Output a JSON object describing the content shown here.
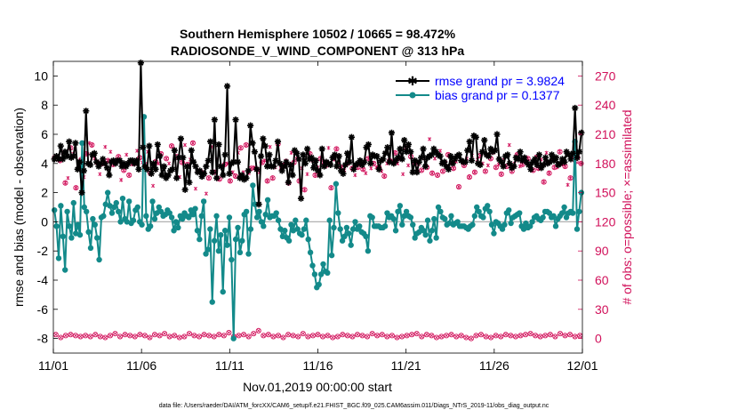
{
  "chart_data": {
    "type": "line",
    "title_line1": "Southern Hemisphere 10502 / 10665 = 98.472%",
    "title_line2": "RADIOSONDE_V_WIND_COMPONENT @ 313 hPa",
    "ylabel_left": "rmse and bias (model - observation)",
    "ylabel_right": "# of obs: o=possible; ×=assimilated",
    "xlabel": "Nov.01,2019 00:00:00 start",
    "footer": "data file: /Users/raeder/DAI/ATM_forcXX/CAM6_setup/f.e21.FHIST_BGC.f09_025.CAM6assim.011/Diags_NTrS_2019-11/obs_diag_output.nc",
    "xlim": [
      0,
      30
    ],
    "ylim_left": [
      -9,
      11
    ],
    "ylim_right": [
      -15,
      285
    ],
    "x_ticks": [
      0,
      5,
      10,
      15,
      20,
      25,
      30
    ],
    "x_tick_labels": [
      "11/01",
      "11/06",
      "11/11",
      "11/16",
      "11/21",
      "11/26",
      "12/01"
    ],
    "y_ticks_left": [
      -8,
      -6,
      -4,
      -2,
      0,
      2,
      4,
      6,
      8,
      10
    ],
    "y_tick_labels_left": [
      "-8",
      "-6",
      "-4",
      "-2",
      "0",
      "2",
      "4",
      "6",
      "8",
      "10"
    ],
    "y_ticks_right": [
      0,
      30,
      60,
      90,
      120,
      150,
      180,
      210,
      240,
      270
    ],
    "y_tick_labels_right": [
      "0",
      "30",
      "60",
      "90",
      "120",
      "150",
      "180",
      "210",
      "240",
      "270"
    ],
    "colors": {
      "rmse": "#000000",
      "bias": "#138a8a",
      "obs": "#d1105a",
      "legend_text": "#0000ff",
      "zero_line": "#b0b0b0",
      "axis": "#000000"
    },
    "series": [
      {
        "name": "rmse grand pr = 3.9824",
        "axis": "left",
        "marker": "star",
        "values": [
          4.3,
          4.5,
          4.3,
          5.2,
          4.3,
          4.8,
          4.5,
          5.5,
          4.4,
          4.5,
          5.4,
          3.6,
          4.1,
          2.0,
          3.5,
          7.6,
          4.0,
          3.9,
          4.6,
          4.7,
          4.1,
          3.8,
          4.0,
          4.3,
          4.0,
          3.7,
          3.2,
          4.1,
          4.2,
          4.0,
          4.2,
          4.2,
          3.8,
          4.0,
          3.8,
          4.0,
          4.2,
          4.2,
          4.0,
          4.2,
          3.6,
          10.9,
          5.1,
          3.8,
          3.6,
          5.2,
          3.3,
          4.0,
          3.6,
          5.3,
          4.5,
          3.2,
          3.8,
          3.0,
          3.2,
          3.5,
          3.6,
          4.9,
          3.0,
          4.4,
          5.7,
          4.4,
          2.2,
          3.8,
          2.7,
          4.9,
          4.1,
          3.8,
          3.4,
          3.5,
          3.1,
          3.3,
          3.8,
          4.2,
          5.5,
          3.4,
          7.0,
          3.0,
          5.3,
          3.8,
          3.2,
          4.6,
          9.3,
          3.3,
          4.0,
          4.1,
          7.0,
          4.1,
          3.0,
          3.2,
          2.9,
          3.0,
          3.5,
          6.6,
          5.4,
          4.8,
          3.6,
          1.2,
          4.5,
          5.7,
          5.2,
          3.8,
          4.6,
          3.8,
          3.8,
          4.2,
          5.5,
          4.0,
          3.5,
          3.8,
          4.1,
          2.7,
          3.9,
          3.2,
          4.9,
          4.7,
          4.3,
          1.6,
          4.6,
          4.0,
          5.0,
          4.3,
          4.4,
          3.7,
          4.2,
          3.5,
          3.2,
          5.0,
          3.8,
          4.1,
          4.0,
          3.9,
          4.4,
          4.6,
          3.8,
          4.5,
          3.5,
          3.3,
          3.9,
          4.7,
          4.1,
          5.8,
          3.6,
          3.9,
          4.0,
          4.2,
          3.9,
          4.1,
          5.1,
          5.3,
          4.0,
          4.6,
          4.5,
          4.5,
          3.6,
          4.2,
          4.3,
          4.7,
          5.1,
          4.1,
          6.1,
          4.0,
          4.2,
          4.4,
          5.0,
          4.3,
          5.6,
          4.8,
          5.3,
          4.8,
          3.4,
          4.2,
          3.4,
          4.1,
          4.4,
          5.0,
          3.8,
          4.4,
          4.5,
          4.6,
          5.0,
          4.8,
          4.6,
          4.5,
          4.0,
          4.1,
          3.8,
          3.6,
          4.5,
          4.0,
          4.3,
          4.5,
          4.6,
          4.2,
          4.1,
          4.1,
          4.9,
          5.5,
          4.2,
          5.9,
          5.8,
          4.0,
          3.9,
          4.8,
          5.6,
          4.6,
          4.5,
          5.0,
          4.8,
          4.9,
          6.0,
          4.3,
          4.1,
          3.8,
          4.5,
          4.6,
          4.0,
          3.7,
          3.8,
          4.4,
          4.3,
          4.8,
          4.2,
          4.4,
          4.1,
          3.9,
          3.6,
          4.1,
          4.3,
          3.9,
          4.6,
          3.7,
          3.9,
          4.4,
          4.0,
          4.1,
          4.6,
          4.2,
          4.4,
          3.9,
          4.0,
          4.3,
          4.1,
          4.8,
          4.6,
          4.3,
          4.7,
          7.8,
          4.4,
          4.8,
          6.1
        ]
      },
      {
        "name": "bias grand pr = 0.1377",
        "axis": "left",
        "marker": "dot",
        "values": [
          0.8,
          -0.3,
          -2.5,
          1.1,
          -1.0,
          -3.3,
          0.7,
          -0.3,
          -1.1,
          1.3,
          -0.8,
          -0.2,
          -0.9,
          5.4,
          1.0,
          0.7,
          -0.7,
          -1.8,
          0.2,
          -0.2,
          -1.1,
          -2.6,
          0.3,
          0.4,
          1.2,
          2.0,
          1.1,
          0.6,
          1.0,
          1.3,
          0.7,
          0.0,
          1.6,
          0.2,
          0.0,
          1.4,
          -0.1,
          0.1,
          0.8,
          1.0,
          0.0,
          -0.2,
          7.2,
          0.4,
          -0.5,
          -0.3,
          1.4,
          0.2,
          0.6,
          1.0,
          0.7,
          0.4,
          0.5,
          0.8,
          0.6,
          0.3,
          -0.6,
          0.0,
          -0.4,
          0.4,
          0.2,
          0.6,
          0.4,
          0.3,
          0.8,
          0.5,
          0.9,
          -0.6,
          -1.2,
          0.4,
          1.4,
          -2.2,
          -1.9,
          -0.5,
          -5.5,
          -1.3,
          0.4,
          -2.0,
          -0.9,
          -4.8,
          -0.6,
          -1.6,
          0.3,
          -2.6,
          -8.0,
          -1.2,
          -0.4,
          -2.1,
          -1.3,
          0.5,
          0.7,
          -2.2,
          -0.5,
          2.5,
          1.2,
          0.3,
          0.7,
          0.0,
          -0.3,
          0.5,
          1.5,
          0.3,
          0.4,
          0.4,
          0.6,
          0.1,
          -0.5,
          -1.0,
          -0.6,
          -1.1,
          -1.3,
          -0.2,
          -0.6,
          0.1,
          -0.5,
          -0.8,
          -0.9,
          -0.5,
          0.1,
          -1.2,
          -2.1,
          -3.0,
          -3.6,
          -4.5,
          -4.3,
          -3.6,
          -2.9,
          -3.4,
          -3.5,
          0.1,
          -2.3,
          -0.4,
          2.6,
          0.6,
          -0.5,
          -1.3,
          -1.0,
          -0.4,
          -0.8,
          -1.6,
          -0.5,
          0.0,
          -0.5,
          -0.3,
          -0.7,
          -0.8,
          -1.0,
          -2.0,
          0.4,
          0.3,
          -0.3,
          -0.3,
          -0.3,
          -0.4,
          -0.4,
          -0.3,
          0.6,
          0.3,
          0.4,
          0.2,
          -0.6,
          0.7,
          1.1,
          -0.2,
          0.4,
          0.7,
          0.4,
          0.3,
          -0.2,
          -1.1,
          -0.8,
          -0.7,
          -0.4,
          -0.6,
          -0.9,
          0.1,
          -1.3,
          -0.6,
          0.2,
          -1.1,
          1.0,
          0.7,
          0.3,
          0.2,
          -0.2,
          -0.1,
          0.4,
          -0.2,
          -0.1,
          0.0,
          -0.3,
          -0.3,
          -0.3,
          -0.4,
          -0.5,
          -0.3,
          -0.2,
          0.4,
          1.0,
          0.7,
          0.4,
          0.3,
          0.9,
          1.1,
          0.7,
          -0.2,
          -0.8,
          0.0,
          -0.1,
          -0.3,
          -0.5,
          -0.2,
          0.6,
          0.8,
          -0.1,
          0.3,
          0.4,
          0.5,
          0.6,
          -0.3,
          -0.5,
          -0.1,
          -0.4,
          -0.3,
          0.0,
          0.3,
          0.4,
          0.2,
          0.1,
          0.3,
          0.7,
          0.7,
          0.6,
          0.3,
          0.4,
          -0.3,
          0.2,
          0.4,
          0.6,
          1.0,
          0.3,
          0.6,
          0.7,
          0.6,
          5.5,
          -0.5,
          0.7,
          2.0
        ]
      }
    ],
    "obs_points": {
      "axis": "right",
      "possible": [
        4,
        1,
        3,
        4,
        3,
        2,
        3,
        2,
        4,
        2,
        1,
        3,
        5,
        2,
        4,
        3,
        2,
        4,
        3,
        1,
        4,
        3,
        5,
        2,
        3,
        1,
        2,
        5,
        3,
        2,
        4,
        3,
        2,
        4,
        3,
        6,
        2,
        3,
        4,
        2,
        5,
        8,
        3,
        4,
        2,
        3,
        1,
        4,
        3,
        2,
        5,
        2,
        3,
        4,
        2,
        3,
        1,
        2,
        4,
        3,
        2,
        4,
        3,
        2,
        5,
        3,
        4,
        2,
        3,
        1,
        2,
        3,
        4,
        5,
        2,
        4,
        3,
        1,
        2,
        3,
        4,
        2,
        3,
        1,
        0,
        3,
        4,
        2,
        1,
        3,
        2,
        4,
        3,
        2,
        3,
        4,
        5,
        3,
        2,
        3,
        4,
        2,
        5,
        3,
        4,
        2,
        3
      ],
      "assimilated": [
        186,
        187,
        183,
        191,
        160,
        165,
        196,
        190,
        155,
        175,
        184,
        166,
        190,
        201,
        199,
        185,
        181,
        169,
        180,
        197,
        183,
        192,
        179,
        181,
        187,
        163,
        173,
        189,
        168,
        179,
        180,
        193,
        186,
        181,
        179,
        192,
        170,
        157,
        182,
        180,
        190,
        177,
        185,
        180,
        198,
        193,
        187,
        166,
        181,
        199,
        179,
        184,
        201,
        154,
        172,
        172,
        170,
        149,
        165,
        197,
        171,
        184,
        164,
        176,
        179,
        180,
        162,
        171,
        167,
        191,
        196,
        171,
        199,
        170,
        175,
        176,
        174,
        171,
        181,
        183,
        162,
        197,
        165,
        176,
        200,
        175,
        178,
        183,
        160,
        191,
        181,
        185,
        162,
        175,
        153,
        169,
        190,
        183,
        168,
        176,
        185,
        181,
        178,
        196,
        155,
        184,
        195,
        181,
        176,
        173,
        180,
        182,
        175,
        168,
        176,
        179,
        174,
        170,
        185,
        175,
        180,
        176,
        176,
        172,
        167,
        180,
        183,
        182,
        191,
        180,
        185,
        169,
        196,
        178,
        187,
        180,
        181,
        179,
        173,
        185,
        176,
        205,
        170,
        185,
        168,
        193,
        172,
        181,
        189,
        180,
        175,
        182,
        156,
        183,
        178,
        185,
        166,
        188,
        171,
        184,
        188,
        180,
        172,
        178,
        185,
        191,
        176,
        179,
        169,
        184,
        177,
        199,
        172,
        180,
        189,
        177,
        179,
        184,
        185,
        176,
        173,
        187,
        175,
        184,
        161,
        191,
        170,
        185,
        176,
        176,
        192,
        179,
        177,
        158,
        165,
        187,
        182,
        186,
        180
      ]
    }
  }
}
